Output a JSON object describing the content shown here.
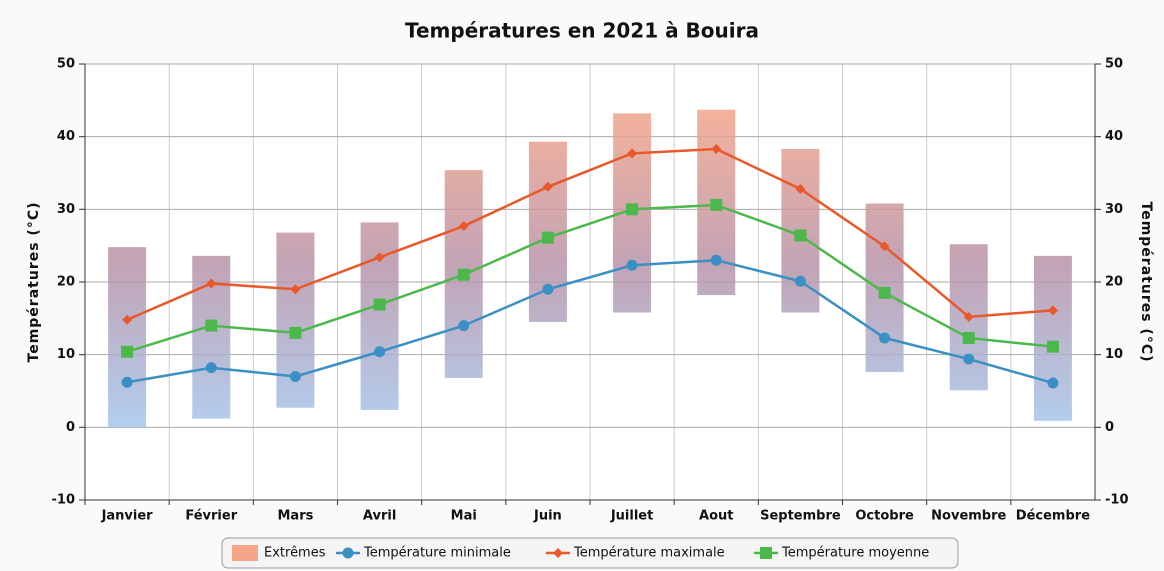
{
  "chart_data": {
    "type": "line",
    "title": "Températures en 2021 à Bouira",
    "y_label": "Températures (°C)",
    "y2_label": "Températures (°C)",
    "categories": [
      "Janvier",
      "Février",
      "Mars",
      "Avril",
      "Mai",
      "Juin",
      "Juillet",
      "Aout",
      "Septembre",
      "Octobre",
      "Novembre",
      "Décembre"
    ],
    "ylim": [
      -10,
      50
    ],
    "yticks": [
      -10,
      0,
      10,
      20,
      30,
      40,
      50
    ],
    "y2lim": [
      -10,
      50
    ],
    "y2ticks": [
      -10,
      0,
      10,
      20,
      30,
      40,
      50
    ],
    "grid": true,
    "legend": "bottom",
    "range": {
      "name": "Extrêmes",
      "color_top": "#f6a588",
      "color_bottom": "#a4c6ec",
      "low": [
        0,
        1.2,
        2.7,
        2.4,
        6.8,
        14.5,
        15.8,
        18.2,
        15.8,
        7.6,
        5.1,
        0.9
      ],
      "high": [
        24.8,
        23.6,
        26.8,
        28.2,
        35.4,
        39.3,
        43.2,
        43.7,
        38.3,
        30.8,
        25.2,
        23.6
      ]
    },
    "series": [
      {
        "name": "Température minimale",
        "color": "#3a90c5",
        "marker": "circle",
        "values": [
          6.2,
          8.2,
          7,
          10.4,
          14,
          19,
          22.3,
          23,
          20.1,
          12.3,
          9.4,
          6.1
        ]
      },
      {
        "name": "Température maximale",
        "color": "#e8582b",
        "marker": "diamond",
        "values": [
          14.8,
          19.8,
          19,
          23.4,
          27.7,
          33.1,
          37.7,
          38.3,
          32.8,
          24.9,
          15.2,
          16.1
        ]
      },
      {
        "name": "Température moyenne",
        "color": "#4cb84c",
        "marker": "square",
        "values": [
          10.4,
          14,
          13,
          16.9,
          21,
          26.1,
          30,
          30.6,
          26.4,
          18.5,
          12.3,
          11.1
        ]
      }
    ]
  }
}
